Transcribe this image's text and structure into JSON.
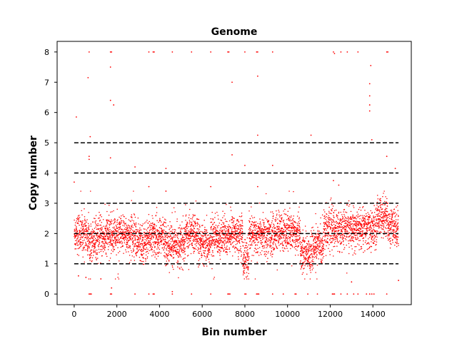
{
  "chart_data": {
    "type": "scatter",
    "title": "Genome",
    "xlabel": "Bin number",
    "ylabel": "Copy number",
    "xlim": [
      -800,
      15800
    ],
    "ylim": [
      -0.35,
      8.35
    ],
    "xticks": [
      0,
      2000,
      4000,
      6000,
      8000,
      10000,
      12000,
      14000
    ],
    "yticks": [
      0,
      1,
      2,
      3,
      4,
      5,
      6,
      7,
      8
    ],
    "grid": false,
    "point_color": "#ff0000",
    "reference_lines": {
      "y": [
        1,
        2,
        3,
        4,
        5
      ],
      "x_range": [
        0,
        15200
      ],
      "style": "dashed",
      "color": "#000000"
    },
    "series": [
      {
        "n_points": 15200,
        "regions": [
          {
            "x": [
              0,
              600
            ],
            "mean": 2.0
          },
          {
            "x": [
              600,
              1500
            ],
            "mean": 1.85
          },
          {
            "x": [
              1500,
              2900
            ],
            "mean": 1.95
          },
          {
            "x": [
              2900,
              3400
            ],
            "mean": 1.7
          },
          {
            "x": [
              3400,
              4300
            ],
            "mean": 1.9
          },
          {
            "x": [
              4300,
              5200
            ],
            "mean": 1.65
          },
          {
            "x": [
              5200,
              5800
            ],
            "mean": 2.0
          },
          {
            "x": [
              5800,
              6400
            ],
            "mean": 1.6
          },
          {
            "x": [
              6400,
              7200
            ],
            "mean": 1.9
          },
          {
            "x": [
              7200,
              7900
            ],
            "mean": 2.0
          },
          {
            "x": [
              7900,
              8200
            ],
            "mean": 1.2
          },
          {
            "x": [
              8200,
              9400
            ],
            "mean": 1.95
          },
          {
            "x": [
              9400,
              10600
            ],
            "mean": 2.05
          },
          {
            "x": [
              10600,
              11200
            ],
            "mean": 1.35
          },
          {
            "x": [
              11200,
              11700
            ],
            "mean": 1.6
          },
          {
            "x": [
              11700,
              14200
            ],
            "mean": 2.15
          },
          {
            "x": [
              14200,
              14700
            ],
            "mean": 2.6
          },
          {
            "x": [
              14700,
              15200
            ],
            "mean": 2.2
          }
        ],
        "outliers": [
          {
            "x": 700,
            "y": 8
          },
          {
            "x": 1700,
            "y": 8
          },
          {
            "x": 1750,
            "y": 8
          },
          {
            "x": 3500,
            "y": 8
          },
          {
            "x": 3700,
            "y": 8
          },
          {
            "x": 3750,
            "y": 8
          },
          {
            "x": 4600,
            "y": 8
          },
          {
            "x": 5500,
            "y": 8
          },
          {
            "x": 6400,
            "y": 8
          },
          {
            "x": 7200,
            "y": 8
          },
          {
            "x": 7250,
            "y": 8
          },
          {
            "x": 8000,
            "y": 8
          },
          {
            "x": 8550,
            "y": 8
          },
          {
            "x": 8600,
            "y": 8
          },
          {
            "x": 9300,
            "y": 8
          },
          {
            "x": 12150,
            "y": 8
          },
          {
            "x": 12200,
            "y": 7.95
          },
          {
            "x": 12500,
            "y": 8
          },
          {
            "x": 12800,
            "y": 8
          },
          {
            "x": 13300,
            "y": 8
          },
          {
            "x": 14650,
            "y": 8
          },
          {
            "x": 14700,
            "y": 8
          },
          {
            "x": 650,
            "y": 7.15
          },
          {
            "x": 1700,
            "y": 7.5
          },
          {
            "x": 7400,
            "y": 7.0
          },
          {
            "x": 8600,
            "y": 7.2
          },
          {
            "x": 13900,
            "y": 7.55
          },
          {
            "x": 13850,
            "y": 6.95
          },
          {
            "x": 13850,
            "y": 6.55
          },
          {
            "x": 13850,
            "y": 6.25
          },
          {
            "x": 13850,
            "y": 6.05
          },
          {
            "x": 1700,
            "y": 6.4
          },
          {
            "x": 1850,
            "y": 6.25
          },
          {
            "x": 100,
            "y": 5.85
          },
          {
            "x": 750,
            "y": 5.2
          },
          {
            "x": 8600,
            "y": 5.25
          },
          {
            "x": 11100,
            "y": 5.25
          },
          {
            "x": 13950,
            "y": 5.1
          },
          {
            "x": 700,
            "y": 4.55
          },
          {
            "x": 700,
            "y": 4.45
          },
          {
            "x": 1700,
            "y": 4.5
          },
          {
            "x": 7400,
            "y": 4.6
          },
          {
            "x": 8000,
            "y": 4.25
          },
          {
            "x": 9300,
            "y": 4.25
          },
          {
            "x": 14650,
            "y": 4.55
          },
          {
            "x": 2850,
            "y": 4.2
          },
          {
            "x": 4300,
            "y": 4.15
          },
          {
            "x": 15050,
            "y": 4.15
          },
          {
            "x": 0,
            "y": 3.7
          },
          {
            "x": 3500,
            "y": 3.55
          },
          {
            "x": 6400,
            "y": 3.55
          },
          {
            "x": 8600,
            "y": 3.55
          },
          {
            "x": 4300,
            "y": 3.4
          },
          {
            "x": 12150,
            "y": 3.75
          },
          {
            "x": 12400,
            "y": 3.6
          },
          {
            "x": 700,
            "y": 0
          },
          {
            "x": 750,
            "y": 0
          },
          {
            "x": 800,
            "y": 0
          },
          {
            "x": 1700,
            "y": 0
          },
          {
            "x": 1750,
            "y": 0
          },
          {
            "x": 2850,
            "y": 0
          },
          {
            "x": 3500,
            "y": 0
          },
          {
            "x": 3700,
            "y": 0
          },
          {
            "x": 3750,
            "y": 0
          },
          {
            "x": 4600,
            "y": 0
          },
          {
            "x": 5500,
            "y": 0
          },
          {
            "x": 6400,
            "y": 0
          },
          {
            "x": 7200,
            "y": 0
          },
          {
            "x": 7250,
            "y": 0
          },
          {
            "x": 7300,
            "y": 0
          },
          {
            "x": 8000,
            "y": 0
          },
          {
            "x": 8050,
            "y": 0
          },
          {
            "x": 8550,
            "y": 0
          },
          {
            "x": 8600,
            "y": 0
          },
          {
            "x": 8650,
            "y": 0
          },
          {
            "x": 9300,
            "y": 0
          },
          {
            "x": 9800,
            "y": 0
          },
          {
            "x": 10350,
            "y": 0
          },
          {
            "x": 10400,
            "y": 0
          },
          {
            "x": 10950,
            "y": 0
          },
          {
            "x": 11400,
            "y": 0
          },
          {
            "x": 12100,
            "y": 0
          },
          {
            "x": 12150,
            "y": 0
          },
          {
            "x": 12200,
            "y": 0
          },
          {
            "x": 12500,
            "y": 0
          },
          {
            "x": 12800,
            "y": 0
          },
          {
            "x": 13100,
            "y": 0
          },
          {
            "x": 13300,
            "y": 0
          },
          {
            "x": 13700,
            "y": 0
          },
          {
            "x": 13850,
            "y": 0
          },
          {
            "x": 13950,
            "y": 0
          },
          {
            "x": 14050,
            "y": 0
          },
          {
            "x": 14650,
            "y": 0
          },
          {
            "x": 15200,
            "y": 0.45
          },
          {
            "x": 1750,
            "y": 0.2
          },
          {
            "x": 4600,
            "y": 0.08
          },
          {
            "x": 13000,
            "y": 0.4
          },
          {
            "x": 200,
            "y": 0.6
          },
          {
            "x": 550,
            "y": 0.55
          },
          {
            "x": 1250,
            "y": 0.5
          }
        ]
      }
    ]
  }
}
